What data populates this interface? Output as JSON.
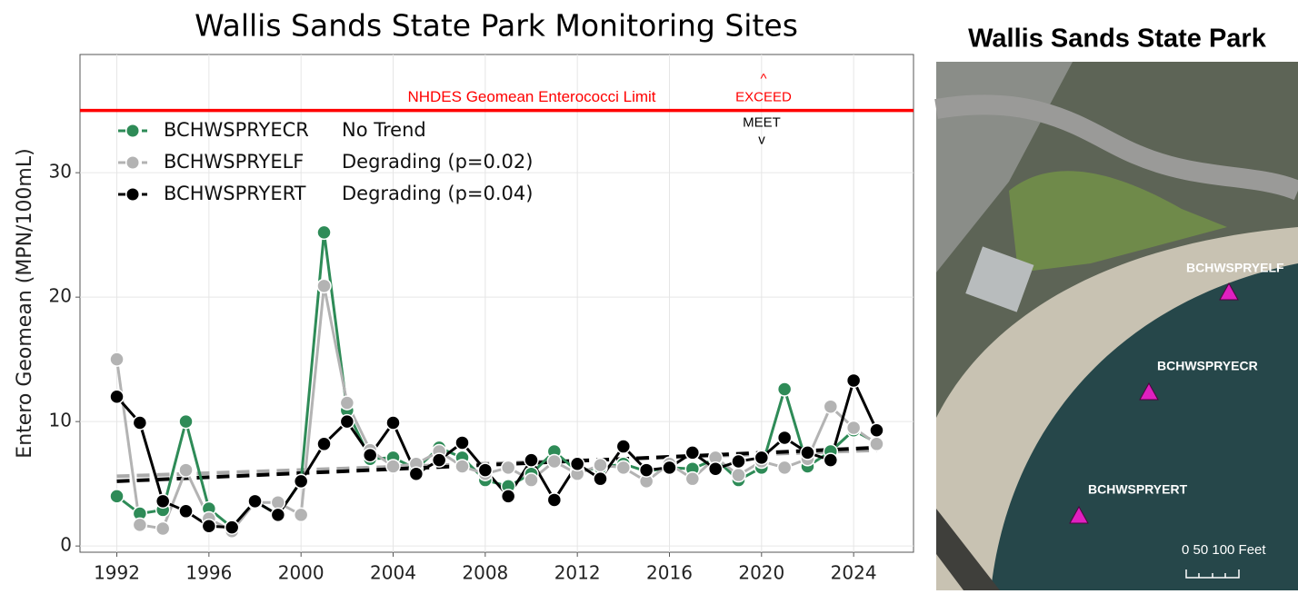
{
  "chart_data": {
    "type": "line",
    "title": "Wallis Sands State Park Monitoring Sites",
    "y_label": "Entero Geomean (MPN/100mL)",
    "x": [
      1992,
      1993,
      1994,
      1995,
      1996,
      1997,
      1998,
      1999,
      2000,
      2001,
      2002,
      2003,
      2004,
      2005,
      2006,
      2007,
      2008,
      2009,
      2010,
      2011,
      2012,
      2013,
      2014,
      2015,
      2016,
      2017,
      2018,
      2019,
      2020,
      2021,
      2022,
      2023,
      2024,
      2025
    ],
    "series": [
      {
        "name": "BCHWSPRYECR",
        "trend_label": "No Trend",
        "color": "#2e8b57",
        "values": [
          4.0,
          2.6,
          2.9,
          10.0,
          3.0,
          1.5,
          3.6,
          2.5,
          5.2,
          25.2,
          10.9,
          7.0,
          7.1,
          6.2,
          7.9,
          7.1,
          5.3,
          4.8,
          5.8,
          7.6,
          6.0,
          6.3,
          6.6,
          6.0,
          6.3,
          6.2,
          7.0,
          5.3,
          6.3,
          12.6,
          6.4,
          7.6,
          9.3,
          8.3
        ]
      },
      {
        "name": "BCHWSPRYELF",
        "trend_label": "Degrading (p=0.02)",
        "color": "#b3b3b3",
        "values": [
          15.0,
          1.7,
          1.4,
          6.1,
          2.2,
          1.2,
          3.5,
          3.5,
          2.5,
          20.9,
          11.5,
          7.7,
          6.4,
          6.6,
          7.6,
          6.4,
          5.8,
          6.3,
          5.3,
          6.8,
          5.8,
          6.5,
          6.3,
          5.2,
          6.6,
          5.4,
          7.1,
          5.7,
          6.8,
          6.3,
          7.0,
          11.2,
          9.5,
          8.2
        ],
        "trend": [
          5.6,
          7.7
        ]
      },
      {
        "name": "BCHWSPRYERT",
        "trend_label": "Degrading (p=0.04)",
        "color": "#000000",
        "values": [
          12.0,
          9.9,
          3.6,
          2.8,
          1.6,
          1.5,
          3.6,
          2.5,
          5.2,
          8.2,
          10.0,
          7.3,
          9.9,
          5.8,
          6.9,
          8.3,
          6.1,
          4.0,
          6.9,
          3.7,
          6.6,
          5.4,
          8.0,
          6.1,
          6.3,
          7.5,
          6.2,
          6.8,
          7.1,
          8.7,
          7.5,
          6.9,
          13.3,
          9.3
        ],
        "trend": [
          5.2,
          7.9
        ]
      }
    ],
    "limit": {
      "value": 35,
      "label": "NHDES Geomean Enterococci Limit",
      "color": "#ff0000",
      "exceed": [
        "^",
        "EXCEED"
      ],
      "meet": [
        "MEET",
        "v"
      ]
    },
    "xlim": [
      1990.4,
      2026.6
    ],
    "ylim": [
      -0.5,
      39.5
    ],
    "xticks": [
      1992,
      1996,
      2000,
      2004,
      2008,
      2012,
      2016,
      2020,
      2024
    ],
    "yticks": [
      0,
      10,
      20,
      30
    ],
    "grid": true
  },
  "map": {
    "title": "Wallis Sands State Park",
    "sites": [
      "BCHWSPRYELF",
      "BCHWSPRYECR",
      "BCHWSPRYERT"
    ],
    "scale": "0  50 100 Feet"
  }
}
